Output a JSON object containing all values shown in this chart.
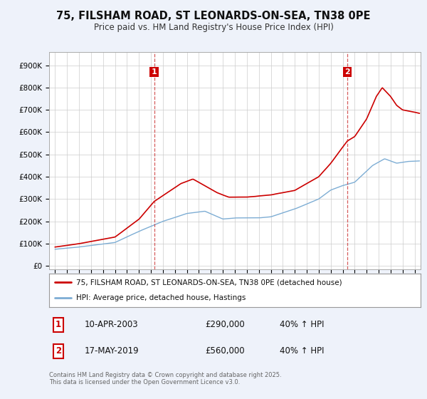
{
  "title_line1": "75, FILSHAM ROAD, ST LEONARDS-ON-SEA, TN38 0PE",
  "title_line2": "Price paid vs. HM Land Registry's House Price Index (HPI)",
  "legend_label1": "75, FILSHAM ROAD, ST LEONARDS-ON-SEA, TN38 0PE (detached house)",
  "legend_label2": "HPI: Average price, detached house, Hastings",
  "property_color": "#cc0000",
  "hpi_color": "#7dadd4",
  "marker1_date_x": 2003.27,
  "marker2_date_x": 2019.38,
  "purchase1": {
    "date": "10-APR-2003",
    "price": 290000,
    "change": "40% ↑ HPI"
  },
  "purchase2": {
    "date": "17-MAY-2019",
    "price": 560000,
    "change": "40% ↑ HPI"
  },
  "yticks": [
    0,
    100000,
    200000,
    300000,
    400000,
    500000,
    600000,
    700000,
    800000,
    900000
  ],
  "ylim": [
    -15000,
    960000
  ],
  "xlim": [
    1994.5,
    2025.5
  ],
  "background_color": "#eef2fa",
  "plot_bg": "#ffffff",
  "grid_color": "#cccccc",
  "footer": "Contains HM Land Registry data © Crown copyright and database right 2025.\nThis data is licensed under the Open Government Licence v3.0."
}
